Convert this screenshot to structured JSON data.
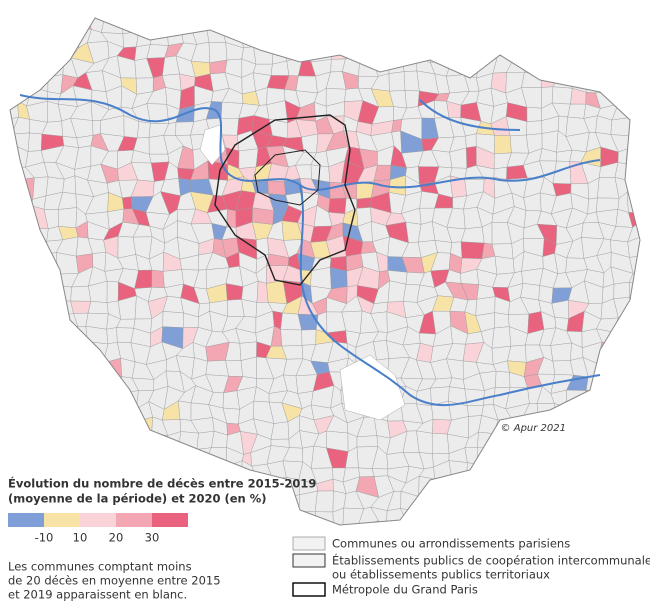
{
  "legend": {
    "title": [
      "Évolution du nombre de décès entre 2015-2019",
      "(moyenne de la période) et 2020 (en %)"
    ],
    "colors": [
      "#7f9fd6",
      "#f8e3a6",
      "#f9d3d8",
      "#f2a7b3",
      "#e9637f"
    ],
    "ticks": [
      -10,
      10,
      20,
      30
    ]
  },
  "note": [
    "Les communes comptant moins",
    "de 20 décès en moyenne entre 2015",
    "et 2019 apparaissent en blanc."
  ],
  "boundaries": [
    {
      "label": [
        "Communes ou arrondissements parisiens"
      ]
    },
    {
      "label": [
        "Établissements publics de coopération intercommunale",
        "ou établissements publics territoriaux"
      ]
    },
    {
      "label": [
        "Métropole du Grand Paris"
      ]
    }
  ],
  "credit": "© Apur 2021"
}
